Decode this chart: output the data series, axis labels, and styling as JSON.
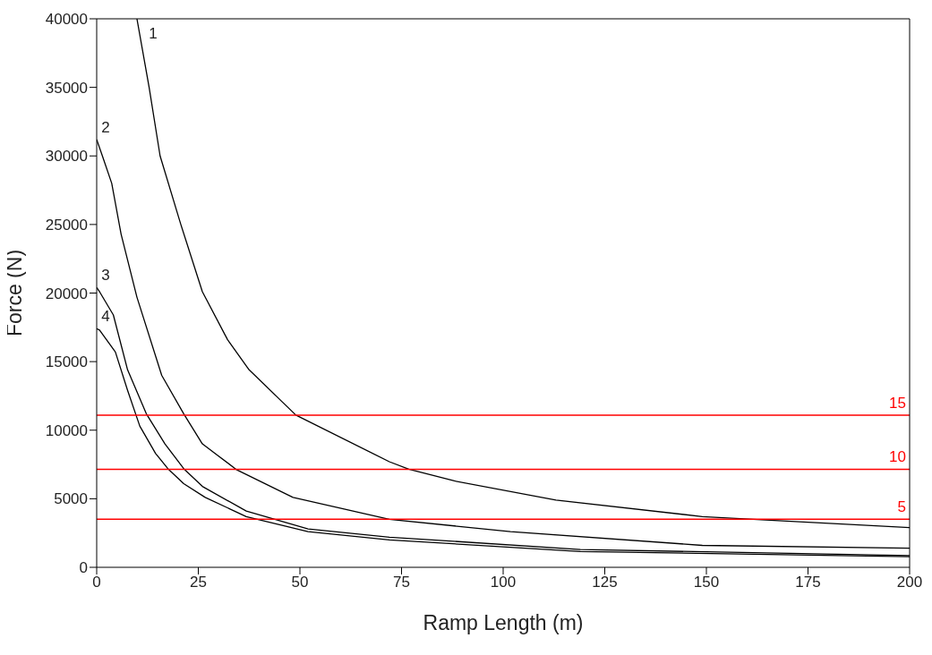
{
  "chart_data": {
    "type": "line",
    "xlabel": "Ramp Length (m)",
    "ylabel": "Force (N)",
    "xlim": [
      0,
      200
    ],
    "xticks": [
      0,
      25,
      50,
      75,
      100,
      125,
      150,
      175,
      200
    ],
    "ylim": [
      0,
      40000
    ],
    "yticks": [
      0,
      5000,
      10000,
      15000,
      20000,
      25000,
      30000,
      35000,
      40000
    ],
    "marker": "none",
    "line_style": "solid",
    "series": [
      {
        "name": "1",
        "color": "#000000",
        "x": [
          9.9,
          12.9,
          15.6,
          20.7,
          26,
          32.2,
          37.5,
          49,
          72,
          76.8,
          88,
          113,
          149,
          200
        ],
        "values": [
          40000,
          35000,
          30000,
          25000,
          20100,
          16600,
          14400,
          11100,
          7700,
          7150,
          6300,
          4900,
          3700,
          2900
        ]
      },
      {
        "name": "2",
        "color": "#000000",
        "x": [
          0,
          1.4,
          3.7,
          6,
          9.9,
          16,
          21.4,
          26,
          34.5,
          48.3,
          72,
          101.8,
          149,
          200
        ],
        "values": [
          31200,
          30000,
          28000,
          24300,
          19700,
          14000,
          11200,
          9000,
          7100,
          5100,
          3500,
          2600,
          1600,
          1400
        ]
      },
      {
        "name": "3",
        "color": "#000000",
        "x": [
          0,
          0.7,
          4.1,
          7.6,
          12.2,
          16.8,
          21.4,
          26,
          36.8,
          52,
          72,
          119,
          200
        ],
        "values": [
          20400,
          20100,
          18400,
          14400,
          11200,
          9000,
          7200,
          5900,
          4100,
          2800,
          2200,
          1300,
          850
        ]
      },
      {
        "name": "4",
        "color": "#000000",
        "x": [
          0,
          0.7,
          4.6,
          7.6,
          10.6,
          14.5,
          17.5,
          21.4,
          26.7,
          36.8,
          52,
          72,
          119,
          200
        ],
        "values": [
          17400,
          17300,
          15700,
          12900,
          10300,
          8300,
          7200,
          6100,
          5100,
          3700,
          2600,
          2000,
          1150,
          780
        ]
      },
      {
        "name": "15",
        "color": "#ff0000",
        "x": [
          0,
          200
        ],
        "values": [
          11100,
          11100
        ]
      },
      {
        "name": "10",
        "color": "#ff0000",
        "x": [
          0,
          200
        ],
        "values": [
          7150,
          7150
        ]
      },
      {
        "name": "5",
        "color": "#ff0000",
        "x": [
          0,
          200
        ],
        "values": [
          3500,
          3500
        ]
      }
    ]
  }
}
